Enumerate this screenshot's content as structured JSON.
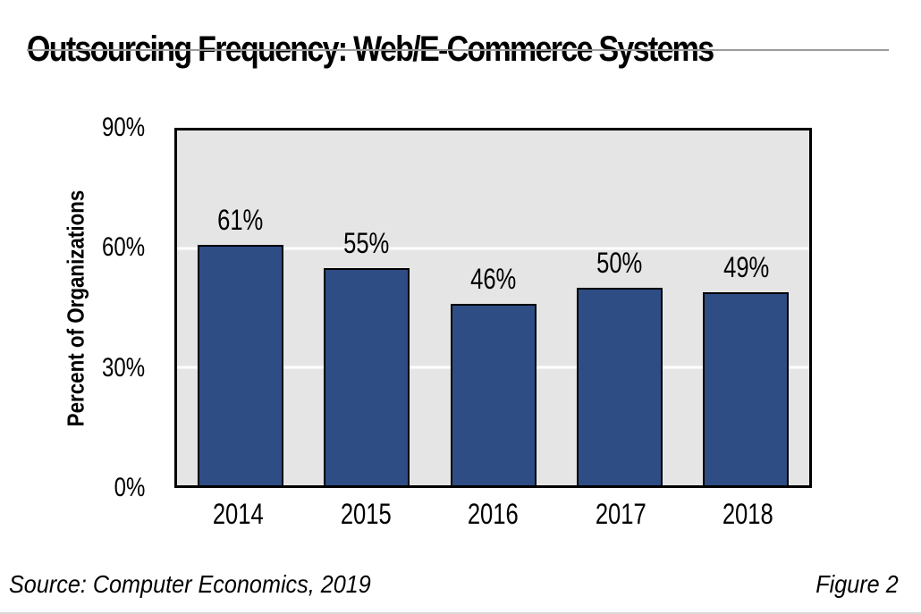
{
  "page": {
    "title": "Outsourcing Frequency: Web/E-Commerce Systems",
    "source": "Source: Computer Economics, 2019",
    "figure_label": "Figure 2"
  },
  "chart_data": {
    "type": "bar",
    "title": "Outsourcing Frequency: Web/E-Commerce Systems",
    "categories": [
      "2014",
      "2015",
      "2016",
      "2017",
      "2018"
    ],
    "values": [
      61,
      55,
      46,
      50,
      49
    ],
    "value_labels": [
      "61%",
      "55%",
      "46%",
      "50%",
      "49%"
    ],
    "xlabel": "",
    "ylabel": "Percent of Organizations",
    "ylim": [
      0,
      90
    ],
    "yticks": [
      {
        "value": 90,
        "label": "90%"
      },
      {
        "value": 60,
        "label": "60%"
      },
      {
        "value": 30,
        "label": "30%"
      },
      {
        "value": 0,
        "label": "0%"
      }
    ],
    "gridlines": [
      60,
      30
    ],
    "grid_on": true,
    "legend": "none",
    "colors": {
      "bar_fill": "#2e4d85",
      "bar_border": "#000000",
      "plot_background": "#e5e5e5",
      "plot_border": "#000000",
      "gridline": "#ffffff",
      "text": "#000000",
      "title_rule": "#9b9b9b"
    }
  }
}
